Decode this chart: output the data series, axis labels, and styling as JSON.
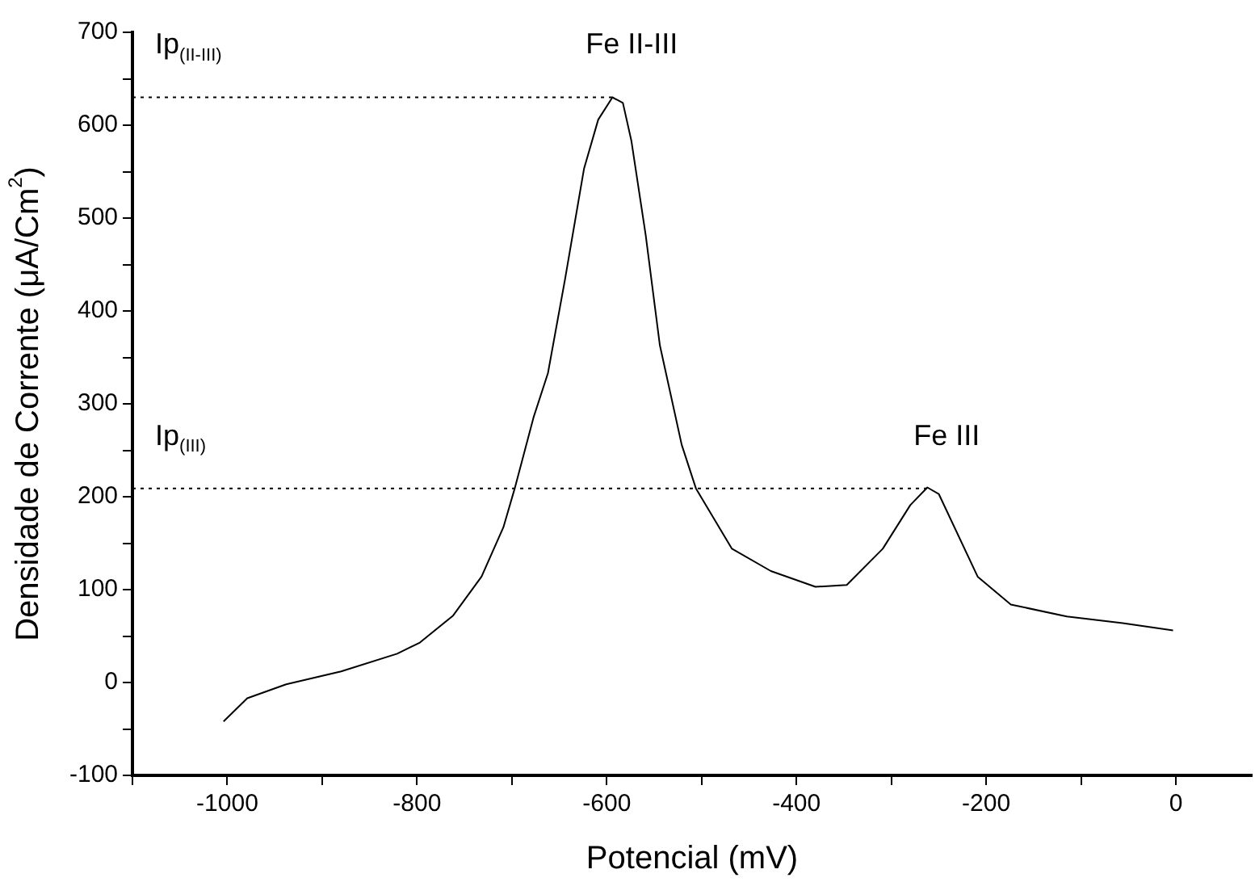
{
  "chart_data": {
    "type": "line",
    "xlabel": "Potencial (mV)",
    "ylabel": "Densidade de Corrente (μA/Cm$^{2}$)",
    "xlim": [
      -1100,
      80
    ],
    "ylim": [
      -100,
      700
    ],
    "xticks": [
      {
        "value": -1100,
        "label": null
      },
      -1000,
      {
        "value": -900,
        "label": null
      },
      -800,
      {
        "value": -700,
        "label": null
      },
      -600,
      {
        "value": -500,
        "label": null
      },
      -400,
      {
        "value": -300,
        "label": null
      },
      -200,
      {
        "value": -100,
        "label": null
      },
      0
    ],
    "yticks": [
      -100,
      {
        "value": -50,
        "label": null
      },
      0,
      {
        "value": 50,
        "label": null
      },
      100,
      {
        "value": 150,
        "label": null
      },
      200,
      {
        "value": 250,
        "label": null
      },
      300,
      {
        "value": 350,
        "label": null
      },
      400,
      {
        "value": 450,
        "label": null
      },
      500,
      {
        "value": 550,
        "label": null
      },
      600,
      {
        "value": 650,
        "label": null
      },
      700
    ],
    "grid": false,
    "legend": false,
    "marker": "none",
    "series": [
      {
        "color": "#000000",
        "line_style": "solid",
        "x": [
          -1004,
          -979,
          -938,
          -880,
          -821,
          -797,
          -762,
          -732,
          -709,
          -697,
          -677,
          -662,
          -644,
          -624,
          -609,
          -594,
          -583,
          -574,
          -559,
          -544,
          -521,
          -506,
          -468,
          -427,
          -380,
          -347,
          -309,
          -280,
          -262,
          -250,
          -209,
          -174,
          -115,
          -56,
          -3
        ],
        "values": [
          -42,
          -17,
          -2,
          12,
          31,
          43,
          72,
          114,
          167,
          209,
          286,
          333,
          434,
          553,
          606,
          630,
          624,
          583,
          482,
          363,
          256,
          209,
          144,
          120,
          103,
          105,
          144,
          191,
          210,
          203,
          114,
          84,
          71,
          64,
          56
        ]
      },
      {
        "color": "#000000",
        "line_style": "dotted",
        "x": [
          -1100,
          -594
        ],
        "values": [
          630,
          630
        ]
      },
      {
        "color": "#000000",
        "line_style": "dotted",
        "x": [
          -1100,
          -262
        ],
        "values": [
          209,
          209
        ]
      }
    ],
    "annotations": [
      {
        "text": "Ip$_{(II-III)}$",
        "x": -1100,
        "y": 630
      },
      {
        "text": "Fe II-III",
        "x": -594,
        "y": 630
      },
      {
        "text": "Ip$_{(III)}$",
        "x": -1100,
        "y": 209
      },
      {
        "text": "Fe III",
        "x": -262,
        "y": 209
      }
    ]
  }
}
